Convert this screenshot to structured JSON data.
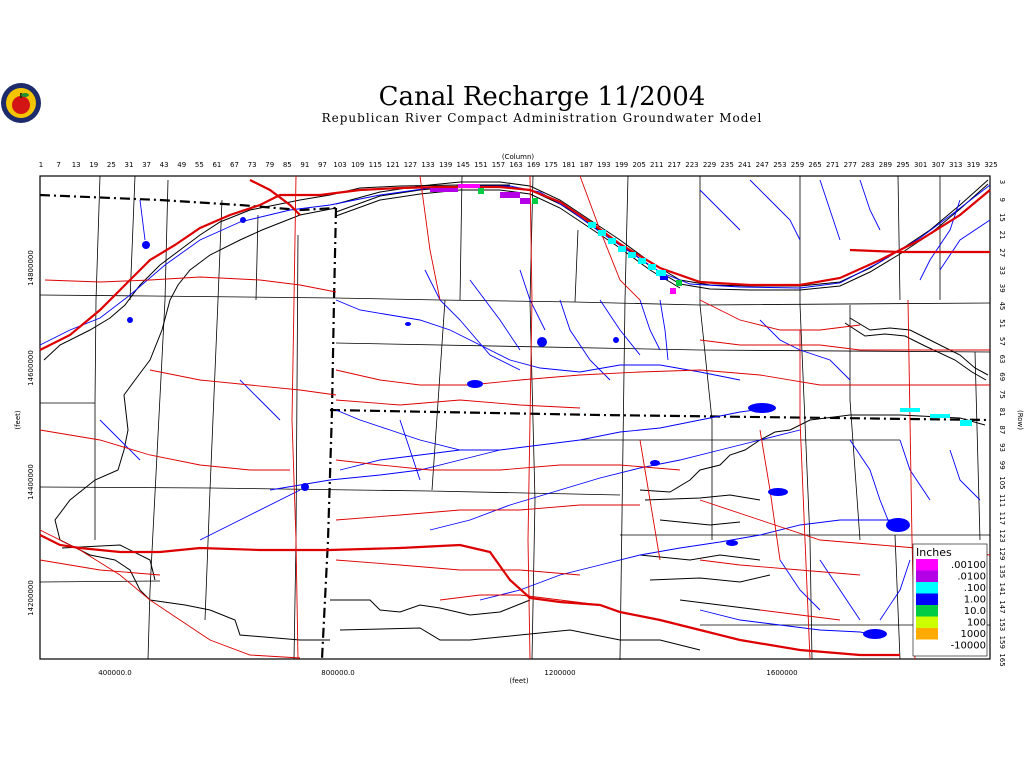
{
  "title": "Canal Recharge 11/2004",
  "subtitle": "Republican River Compact Administration Groundwater Model",
  "logo": {
    "name": "apple-seal-logo"
  },
  "axes": {
    "top_label": "(Column)",
    "top_ticks": [
      "1",
      "7",
      "13",
      "19",
      "25",
      "31",
      "37",
      "43",
      "49",
      "55",
      "61",
      "67",
      "73",
      "79",
      "85",
      "91",
      "97",
      "103",
      "109",
      "115",
      "121",
      "127",
      "133",
      "139",
      "145",
      "151",
      "157",
      "163",
      "169",
      "175",
      "181",
      "187",
      "193",
      "199",
      "205",
      "211",
      "217",
      "223",
      "229",
      "235",
      "241",
      "247",
      "253",
      "259",
      "265",
      "271",
      "277",
      "283",
      "289",
      "295",
      "301",
      "307",
      "313",
      "319",
      "325"
    ],
    "right_label": "(Row)",
    "right_ticks": [
      "3",
      "9",
      "15",
      "21",
      "27",
      "33",
      "39",
      "45",
      "51",
      "57",
      "63",
      "69",
      "75",
      "81",
      "87",
      "93",
      "99",
      "105",
      "111",
      "117",
      "123",
      "129",
      "135",
      "141",
      "147",
      "153",
      "159",
      "165"
    ],
    "bottom_label": "(feet)",
    "bottom_ticks": [
      "400000.0",
      "800000.0",
      "1200000",
      "1600000"
    ],
    "left_label": "(feet)",
    "left_ticks": [
      "14800000",
      "14600000",
      "14400000",
      "14200000"
    ]
  },
  "legend": {
    "title": "Inches",
    "entries": [
      {
        "label": ".00100",
        "color": "#ff00ff"
      },
      {
        "label": ".0100",
        "color": "#b400e6"
      },
      {
        "label": ".100",
        "color": "#00ffff"
      },
      {
        "label": "1.00",
        "color": "#0000ff"
      },
      {
        "label": "10.0",
        "color": "#00cc44"
      },
      {
        "label": "100",
        "color": "#ccff00"
      },
      {
        "label": "1000",
        "color": "#ffaa00"
      },
      {
        "label": "-10000",
        "color": "#ffffff"
      }
    ]
  },
  "colors": {
    "rivers": "#0000ff",
    "roads": "#dd0000",
    "canal": "#000000",
    "boundary": "#000000",
    "grid_lines": "#000000"
  }
}
